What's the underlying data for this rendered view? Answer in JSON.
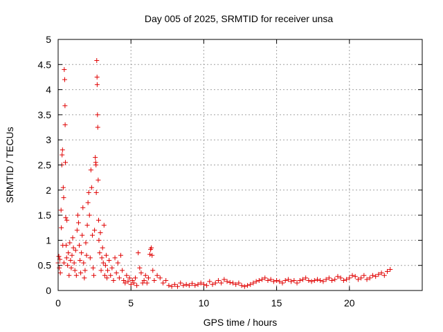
{
  "chart_data": {
    "type": "scatter",
    "title": "Day 005 of 2025, SRMTID for receiver unsa",
    "xlabel": "GPS time / hours",
    "ylabel": "SRMTID / TECUs",
    "xlim": [
      0,
      25
    ],
    "ylim": [
      0,
      5
    ],
    "xticks": [
      0,
      5,
      10,
      15,
      20
    ],
    "xtick_labels": [
      "0",
      "5",
      "10",
      "15",
      "20"
    ],
    "yticks": [
      0,
      0.5,
      1,
      1.5,
      2,
      2.5,
      3,
      3.5,
      4,
      4.5,
      5
    ],
    "ytick_labels": [
      "0",
      "0.5",
      "1",
      "1.5",
      "2",
      "2.5",
      "3",
      "3.5",
      "4",
      "4.5",
      "5"
    ],
    "grid": true,
    "marker": "+",
    "color": "#e00000",
    "series": [
      {
        "name": "SRMTID",
        "points": [
          [
            0.0,
            0.55
          ],
          [
            0.05,
            0.68
          ],
          [
            0.08,
            0.45
          ],
          [
            0.12,
            0.62
          ],
          [
            0.15,
            0.35
          ],
          [
            0.2,
            1.6
          ],
          [
            0.22,
            1.25
          ],
          [
            0.25,
            2.5
          ],
          [
            0.27,
            2.7
          ],
          [
            0.3,
            2.8
          ],
          [
            0.32,
            0.9
          ],
          [
            0.35,
            2.05
          ],
          [
            0.38,
            1.85
          ],
          [
            0.4,
            0.55
          ],
          [
            0.42,
            4.4
          ],
          [
            0.45,
            4.2
          ],
          [
            0.47,
            3.68
          ],
          [
            0.48,
            3.3
          ],
          [
            0.5,
            2.55
          ],
          [
            0.52,
            1.45
          ],
          [
            0.55,
            0.9
          ],
          [
            0.58,
            0.65
          ],
          [
            0.6,
            1.4
          ],
          [
            0.65,
            0.5
          ],
          [
            0.7,
            0.75
          ],
          [
            0.75,
            0.3
          ],
          [
            0.8,
            0.95
          ],
          [
            0.85,
            0.6
          ],
          [
            0.9,
            0.45
          ],
          [
            0.95,
            0.7
          ],
          [
            1.0,
            1.05
          ],
          [
            1.05,
            0.85
          ],
          [
            1.1,
            0.55
          ],
          [
            1.15,
            0.4
          ],
          [
            1.2,
            0.8
          ],
          [
            1.25,
            0.3
          ],
          [
            1.3,
            1.2
          ],
          [
            1.35,
            1.5
          ],
          [
            1.4,
            1.35
          ],
          [
            1.45,
            0.9
          ],
          [
            1.5,
            0.6
          ],
          [
            1.55,
            0.35
          ],
          [
            1.6,
            0.75
          ],
          [
            1.65,
            1.1
          ],
          [
            1.7,
            1.65
          ],
          [
            1.75,
            0.55
          ],
          [
            1.8,
            0.25
          ],
          [
            1.85,
            0.4
          ],
          [
            1.9,
            0.95
          ],
          [
            1.95,
            0.7
          ],
          [
            2.0,
            1.3
          ],
          [
            2.05,
            1.75
          ],
          [
            2.1,
            1.95
          ],
          [
            2.15,
            1.5
          ],
          [
            2.2,
            0.65
          ],
          [
            2.25,
            2.4
          ],
          [
            2.3,
            2.05
          ],
          [
            2.35,
            1.1
          ],
          [
            2.4,
            0.45
          ],
          [
            2.45,
            0.3
          ],
          [
            2.5,
            1.2
          ],
          [
            2.55,
            2.65
          ],
          [
            2.58,
            2.55
          ],
          [
            2.6,
            2.5
          ],
          [
            2.62,
            1.95
          ],
          [
            2.65,
            4.58
          ],
          [
            2.67,
            4.25
          ],
          [
            2.68,
            4.1
          ],
          [
            2.7,
            3.5
          ],
          [
            2.72,
            3.25
          ],
          [
            2.75,
            2.2
          ],
          [
            2.78,
            1.4
          ],
          [
            2.8,
            1.0
          ],
          [
            2.85,
            0.75
          ],
          [
            2.9,
            1.15
          ],
          [
            2.95,
            0.4
          ],
          [
            3.0,
            0.65
          ],
          [
            3.05,
            0.85
          ],
          [
            3.1,
            0.55
          ],
          [
            3.15,
            1.3
          ],
          [
            3.2,
            0.3
          ],
          [
            3.25,
            0.5
          ],
          [
            3.3,
            0.7
          ],
          [
            3.35,
            0.25
          ],
          [
            3.4,
            0.4
          ],
          [
            3.5,
            0.6
          ],
          [
            3.6,
            0.3
          ],
          [
            3.7,
            0.45
          ],
          [
            3.8,
            0.2
          ],
          [
            3.9,
            0.65
          ],
          [
            4.0,
            0.35
          ],
          [
            4.1,
            0.55
          ],
          [
            4.2,
            0.25
          ],
          [
            4.3,
            0.7
          ],
          [
            4.4,
            0.4
          ],
          [
            4.5,
            0.2
          ],
          [
            4.6,
            0.15
          ],
          [
            4.7,
            0.3
          ],
          [
            4.8,
            0.18
          ],
          [
            4.9,
            0.25
          ],
          [
            5.0,
            0.12
          ],
          [
            5.1,
            0.2
          ],
          [
            5.2,
            0.15
          ],
          [
            5.3,
            0.25
          ],
          [
            5.4,
            0.1
          ],
          [
            5.5,
            0.75
          ],
          [
            5.6,
            0.45
          ],
          [
            5.7,
            0.35
          ],
          [
            5.8,
            0.15
          ],
          [
            5.9,
            0.2
          ],
          [
            6.0,
            0.3
          ],
          [
            6.1,
            0.15
          ],
          [
            6.2,
            0.25
          ],
          [
            6.3,
            0.72
          ],
          [
            6.35,
            0.82
          ],
          [
            6.4,
            0.85
          ],
          [
            6.45,
            0.7
          ],
          [
            6.5,
            0.4
          ],
          [
            6.6,
            0.2
          ],
          [
            6.8,
            0.3
          ],
          [
            7.0,
            0.25
          ],
          [
            7.2,
            0.15
          ],
          [
            7.4,
            0.2
          ],
          [
            7.6,
            0.1
          ],
          [
            7.8,
            0.08
          ],
          [
            8.0,
            0.12
          ],
          [
            8.2,
            0.08
          ],
          [
            8.4,
            0.15
          ],
          [
            8.6,
            0.1
          ],
          [
            8.8,
            0.12
          ],
          [
            9.0,
            0.1
          ],
          [
            9.2,
            0.14
          ],
          [
            9.4,
            0.1
          ],
          [
            9.6,
            0.12
          ],
          [
            9.8,
            0.15
          ],
          [
            10.0,
            0.12
          ],
          [
            10.2,
            0.1
          ],
          [
            10.4,
            0.18
          ],
          [
            10.6,
            0.12
          ],
          [
            10.8,
            0.15
          ],
          [
            11.0,
            0.2
          ],
          [
            11.2,
            0.15
          ],
          [
            11.4,
            0.22
          ],
          [
            11.6,
            0.18
          ],
          [
            11.8,
            0.16
          ],
          [
            12.0,
            0.15
          ],
          [
            12.2,
            0.12
          ],
          [
            12.4,
            0.15
          ],
          [
            12.6,
            0.1
          ],
          [
            12.8,
            0.08
          ],
          [
            13.0,
            0.1
          ],
          [
            13.2,
            0.12
          ],
          [
            13.4,
            0.15
          ],
          [
            13.6,
            0.18
          ],
          [
            13.8,
            0.2
          ],
          [
            14.0,
            0.22
          ],
          [
            14.2,
            0.25
          ],
          [
            14.4,
            0.2
          ],
          [
            14.6,
            0.22
          ],
          [
            14.8,
            0.18
          ],
          [
            15.0,
            0.2
          ],
          [
            15.2,
            0.18
          ],
          [
            15.4,
            0.15
          ],
          [
            15.6,
            0.2
          ],
          [
            15.8,
            0.22
          ],
          [
            16.0,
            0.18
          ],
          [
            16.2,
            0.2
          ],
          [
            16.4,
            0.15
          ],
          [
            16.6,
            0.2
          ],
          [
            16.8,
            0.22
          ],
          [
            17.0,
            0.25
          ],
          [
            17.2,
            0.2
          ],
          [
            17.4,
            0.18
          ],
          [
            17.6,
            0.2
          ],
          [
            17.8,
            0.22
          ],
          [
            18.0,
            0.2
          ],
          [
            18.2,
            0.18
          ],
          [
            18.4,
            0.22
          ],
          [
            18.6,
            0.25
          ],
          [
            18.8,
            0.2
          ],
          [
            19.0,
            0.22
          ],
          [
            19.2,
            0.28
          ],
          [
            19.4,
            0.25
          ],
          [
            19.6,
            0.2
          ],
          [
            19.8,
            0.22
          ],
          [
            20.0,
            0.25
          ],
          [
            20.2,
            0.3
          ],
          [
            20.4,
            0.28
          ],
          [
            20.6,
            0.22
          ],
          [
            20.8,
            0.25
          ],
          [
            21.0,
            0.3
          ],
          [
            21.2,
            0.22
          ],
          [
            21.4,
            0.25
          ],
          [
            21.6,
            0.3
          ],
          [
            21.8,
            0.28
          ],
          [
            22.0,
            0.32
          ],
          [
            22.2,
            0.35
          ],
          [
            22.4,
            0.3
          ],
          [
            22.6,
            0.38
          ],
          [
            22.8,
            0.42
          ]
        ]
      }
    ]
  }
}
